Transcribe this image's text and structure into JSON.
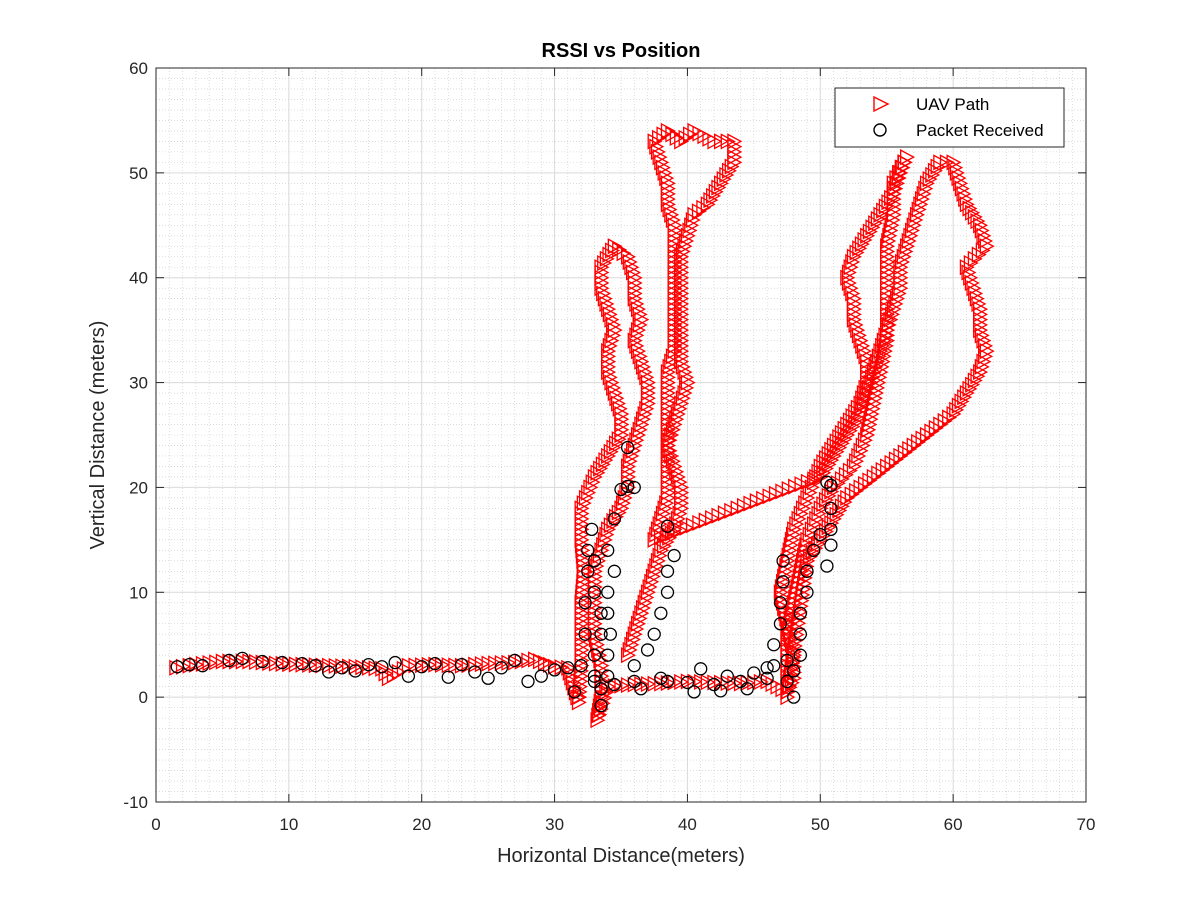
{
  "chart_data": {
    "type": "scatter",
    "title": "RSSI vs Position",
    "xlabel": "Horizontal Distance(meters)",
    "ylabel": "Vertical Distance (meters)",
    "xlim": [
      0,
      70
    ],
    "ylim": [
      -10,
      60
    ],
    "xticks": [
      0,
      10,
      20,
      30,
      40,
      50,
      60,
      70
    ],
    "yticks": [
      -10,
      0,
      10,
      20,
      30,
      40,
      50,
      60
    ],
    "grid": true,
    "minor_grid": true,
    "legend_position": "top-right",
    "series": [
      {
        "name": "UAV Path",
        "marker": "triangle-right",
        "color": "#ff0000",
        "points": [
          [
            1.5,
            2.8
          ],
          [
            3,
            3.1
          ],
          [
            5,
            3.4
          ],
          [
            7,
            3.4
          ],
          [
            9,
            3.2
          ],
          [
            11,
            3.1
          ],
          [
            13,
            3.0
          ],
          [
            15,
            2.9
          ],
          [
            17,
            2.7
          ],
          [
            17.5,
            1.8
          ],
          [
            19,
            3.0
          ],
          [
            21,
            3.1
          ],
          [
            23,
            3.0
          ],
          [
            25,
            3.2
          ],
          [
            27,
            3.3
          ],
          [
            28.5,
            3.6
          ],
          [
            30,
            2.9
          ],
          [
            31,
            2.8
          ],
          [
            31.8,
            -0.5
          ],
          [
            32,
            3
          ],
          [
            32,
            6
          ],
          [
            32,
            9
          ],
          [
            32.2,
            12
          ],
          [
            32,
            15
          ],
          [
            32,
            18
          ],
          [
            33,
            21
          ],
          [
            34,
            23
          ],
          [
            35,
            25
          ],
          [
            35,
            27
          ],
          [
            34.5,
            29
          ],
          [
            34,
            31
          ],
          [
            34,
            33
          ],
          [
            34.5,
            35
          ],
          [
            34,
            37
          ],
          [
            33.5,
            39
          ],
          [
            33.5,
            41
          ],
          [
            34.5,
            43
          ],
          [
            35.5,
            42
          ],
          [
            36,
            40
          ],
          [
            36,
            38
          ],
          [
            36.5,
            36
          ],
          [
            36,
            34
          ],
          [
            36.5,
            32
          ],
          [
            37,
            30
          ],
          [
            37,
            28
          ],
          [
            36.5,
            26
          ],
          [
            36,
            24
          ],
          [
            35.5,
            22
          ],
          [
            35.5,
            20
          ],
          [
            35,
            18
          ],
          [
            34,
            16
          ],
          [
            33.5,
            14
          ],
          [
            33,
            12
          ],
          [
            33,
            9
          ],
          [
            33,
            6
          ],
          [
            33.5,
            3
          ],
          [
            33.5,
            0
          ],
          [
            33.2,
            -2.2
          ],
          [
            34,
            1
          ],
          [
            36,
            1.2
          ],
          [
            38,
            1.3
          ],
          [
            40,
            1.5
          ],
          [
            42,
            1.4
          ],
          [
            44,
            1.3
          ],
          [
            46,
            1.5
          ],
          [
            47.5,
            0.5
          ],
          [
            48,
            1.8
          ],
          [
            48,
            4
          ],
          [
            47.5,
            7
          ],
          [
            47,
            10
          ],
          [
            47.5,
            13
          ],
          [
            48,
            16
          ],
          [
            49,
            19
          ],
          [
            50,
            22
          ],
          [
            51,
            24
          ],
          [
            52,
            26
          ],
          [
            53,
            28
          ],
          [
            53.5,
            30
          ],
          [
            53.5,
            32
          ],
          [
            53,
            34
          ],
          [
            52.5,
            36
          ],
          [
            52.5,
            38
          ],
          [
            52,
            40
          ],
          [
            52.5,
            42
          ],
          [
            53.5,
            44
          ],
          [
            54.5,
            46
          ],
          [
            55.5,
            48
          ],
          [
            56,
            50
          ],
          [
            56.5,
            51.5
          ],
          [
            55.5,
            49
          ],
          [
            55.5,
            46
          ],
          [
            55,
            43
          ],
          [
            55,
            40
          ],
          [
            55,
            37
          ],
          [
            55,
            34
          ],
          [
            54.5,
            31
          ],
          [
            54,
            28
          ],
          [
            53.5,
            25
          ],
          [
            52.5,
            22
          ],
          [
            51,
            20
          ],
          [
            50,
            18
          ],
          [
            49,
            15
          ],
          [
            48.5,
            12
          ],
          [
            48,
            9
          ],
          [
            47.5,
            6
          ],
          [
            47.5,
            3
          ],
          [
            47.5,
            0
          ],
          [
            49,
            13
          ],
          [
            50,
            15
          ],
          [
            51,
            17
          ],
          [
            52,
            19
          ],
          [
            53,
            20
          ],
          [
            54,
            21
          ],
          [
            55,
            22
          ],
          [
            56,
            23
          ],
          [
            57,
            24
          ],
          [
            58,
            25
          ],
          [
            59,
            26
          ],
          [
            60,
            27
          ],
          [
            61,
            29
          ],
          [
            62,
            31
          ],
          [
            62.5,
            33
          ],
          [
            62,
            35
          ],
          [
            62,
            37
          ],
          [
            61.5,
            39
          ],
          [
            61,
            41
          ],
          [
            62.5,
            43
          ],
          [
            62,
            45
          ],
          [
            61,
            47
          ],
          [
            60.5,
            49
          ],
          [
            60,
            51
          ],
          [
            59,
            51
          ],
          [
            58,
            49
          ],
          [
            57.5,
            47
          ],
          [
            57,
            45
          ],
          [
            56.5,
            43
          ],
          [
            56,
            41
          ],
          [
            56,
            39
          ],
          [
            55.5,
            37
          ],
          [
            55,
            35
          ],
          [
            54.5,
            33
          ],
          [
            54,
            31
          ],
          [
            53.5,
            29
          ],
          [
            53,
            27
          ],
          [
            52,
            25
          ],
          [
            51,
            23
          ],
          [
            50,
            21
          ],
          [
            37.5,
            15
          ],
          [
            38,
            17
          ],
          [
            38.5,
            19
          ],
          [
            38.5,
            21
          ],
          [
            38.5,
            23
          ],
          [
            38.5,
            25
          ],
          [
            38.5,
            27
          ],
          [
            38.5,
            29
          ],
          [
            38.5,
            31
          ],
          [
            39,
            33
          ],
          [
            39,
            35
          ],
          [
            39,
            37
          ],
          [
            39,
            39
          ],
          [
            39,
            41
          ],
          [
            39,
            43
          ],
          [
            39,
            45
          ],
          [
            38.5,
            47
          ],
          [
            38.5,
            49
          ],
          [
            38,
            51
          ],
          [
            37.5,
            53
          ],
          [
            38.5,
            54
          ],
          [
            39.5,
            53
          ],
          [
            40.5,
            54
          ],
          [
            42,
            53
          ],
          [
            43.5,
            53
          ],
          [
            43.5,
            51
          ],
          [
            42.5,
            49
          ],
          [
            41.5,
            47
          ],
          [
            40.5,
            46
          ],
          [
            40,
            44
          ],
          [
            39.5,
            42
          ],
          [
            39.5,
            40
          ],
          [
            39.5,
            38
          ],
          [
            39.5,
            36
          ],
          [
            39.5,
            34
          ],
          [
            39.5,
            32
          ],
          [
            40,
            30
          ],
          [
            39.5,
            28
          ],
          [
            39,
            26
          ],
          [
            38.5,
            24
          ],
          [
            39,
            22
          ],
          [
            39.5,
            20
          ],
          [
            39.5,
            18
          ],
          [
            39,
            16
          ],
          [
            38,
            14
          ],
          [
            37.5,
            12
          ],
          [
            37,
            10
          ],
          [
            36.5,
            8
          ],
          [
            36,
            6
          ],
          [
            35.5,
            4
          ]
        ]
      },
      {
        "name": "Packet Received",
        "marker": "circle",
        "color": "#000000",
        "points": [
          [
            1.6,
            2.9
          ],
          [
            2.5,
            3.1
          ],
          [
            3.5,
            3.0
          ],
          [
            5.5,
            3.5
          ],
          [
            6.5,
            3.7
          ],
          [
            8,
            3.4
          ],
          [
            9.5,
            3.3
          ],
          [
            11,
            3.2
          ],
          [
            12,
            3.0
          ],
          [
            13,
            2.4
          ],
          [
            14,
            2.8
          ],
          [
            15,
            2.5
          ],
          [
            16,
            3.1
          ],
          [
            17,
            2.9
          ],
          [
            18,
            3.3
          ],
          [
            19,
            2.0
          ],
          [
            20,
            2.9
          ],
          [
            21,
            3.2
          ],
          [
            22,
            1.9
          ],
          [
            23,
            3.1
          ],
          [
            24,
            2.4
          ],
          [
            25,
            1.8
          ],
          [
            26,
            2.8
          ],
          [
            27,
            3.5
          ],
          [
            28,
            1.5
          ],
          [
            29,
            2.0
          ],
          [
            30,
            2.6
          ],
          [
            31,
            2.8
          ],
          [
            31.5,
            0.5
          ],
          [
            32,
            3
          ],
          [
            32.3,
            6
          ],
          [
            32.3,
            9
          ],
          [
            32.5,
            12
          ],
          [
            32.5,
            14
          ],
          [
            32.8,
            16
          ],
          [
            33,
            13
          ],
          [
            33,
            10
          ],
          [
            33.5,
            8
          ],
          [
            33.5,
            6
          ],
          [
            33,
            4
          ],
          [
            33,
            2
          ],
          [
            33.5,
            0.8
          ],
          [
            33.5,
            -0.8
          ],
          [
            34,
            2
          ],
          [
            34,
            4
          ],
          [
            34.2,
            6
          ],
          [
            34,
            8
          ],
          [
            34,
            10
          ],
          [
            34.5,
            12
          ],
          [
            34,
            14
          ],
          [
            34.5,
            17
          ],
          [
            35,
            19.8
          ],
          [
            35.5,
            20.1
          ],
          [
            35.5,
            23.8
          ],
          [
            36,
            20
          ],
          [
            36,
            3
          ],
          [
            37,
            4.5
          ],
          [
            37.5,
            6
          ],
          [
            38,
            8
          ],
          [
            38.5,
            10
          ],
          [
            38.5,
            12
          ],
          [
            39,
            13.5
          ],
          [
            38.5,
            16.3
          ],
          [
            36,
            1.5
          ],
          [
            38,
            1.8
          ],
          [
            40,
            1.4
          ],
          [
            41,
            2.7
          ],
          [
            42,
            1.2
          ],
          [
            43,
            2.0
          ],
          [
            44,
            1.5
          ],
          [
            45,
            2.3
          ],
          [
            46,
            1.8
          ],
          [
            46.5,
            3
          ],
          [
            46.5,
            5
          ],
          [
            47,
            7
          ],
          [
            47,
            9
          ],
          [
            47.2,
            11
          ],
          [
            47.2,
            13
          ],
          [
            47.5,
            3.5
          ],
          [
            47.5,
            1.5
          ],
          [
            48,
            0
          ],
          [
            48,
            2.5
          ],
          [
            48.5,
            4
          ],
          [
            48.5,
            6
          ],
          [
            48.5,
            8
          ],
          [
            49,
            10
          ],
          [
            49,
            12
          ],
          [
            49.5,
            14
          ],
          [
            50,
            15.5
          ],
          [
            50.5,
            12.5
          ],
          [
            50.8,
            14.5
          ],
          [
            50.8,
            16
          ],
          [
            50.8,
            18
          ],
          [
            50.5,
            20.5
          ],
          [
            50.8,
            20.2
          ],
          [
            33,
            1.5
          ],
          [
            34.5,
            1.2
          ],
          [
            36.5,
            0.8
          ],
          [
            38.5,
            1.5
          ],
          [
            40.5,
            0.5
          ],
          [
            42.5,
            0.6
          ],
          [
            44.5,
            0.8
          ],
          [
            46,
            2.8
          ]
        ]
      }
    ]
  }
}
